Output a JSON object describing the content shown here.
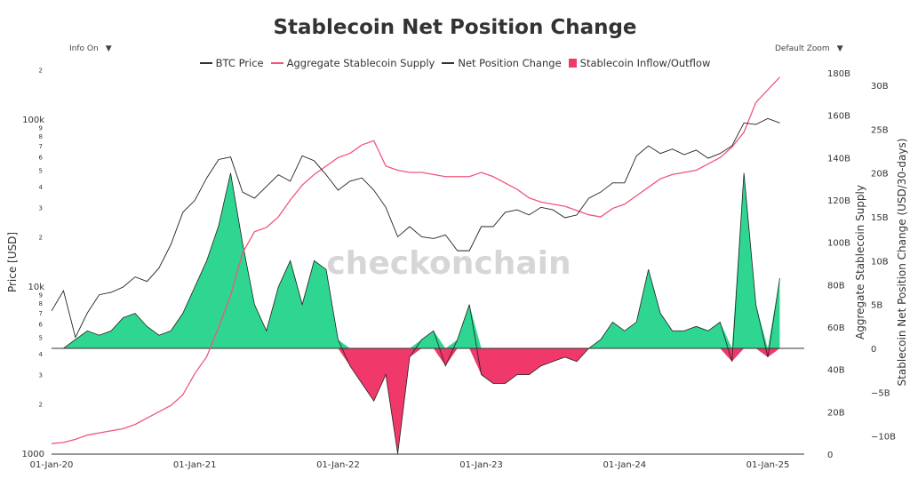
{
  "title": "Stablecoin Net Position Change",
  "controls": {
    "info": "Info On",
    "zoom": "Default Zoom",
    "caret": "▼"
  },
  "watermark": "checkonchain",
  "colors": {
    "price": "#222222",
    "supply": "#f0567a",
    "net_line": "#222222",
    "pos_fill": "#2fd691",
    "neg_fill": "#f0386b"
  },
  "chart_data": {
    "type": "line",
    "title": "Stablecoin Net Position Change",
    "legend": [
      "BTC Price",
      "Aggregate Stablecoin Supply",
      "Net Position Change",
      "Stablecoin Inflow/Outflow"
    ],
    "legend_placement": "top-center",
    "x_ticks": [
      "01-Jan-20",
      "01-Jan-21",
      "01-Jan-22",
      "01-Jan-23",
      "01-Jan-24",
      "01-Jan-25"
    ],
    "x_start": "2020-01",
    "x_step": "monthly",
    "y_left": {
      "label": "Price [USD]",
      "scale": "log",
      "range": [
        1000,
        200000
      ],
      "ticks": [
        {
          "v": 1000,
          "t": "1000"
        },
        {
          "v": 2000,
          "t": "2"
        },
        {
          "v": 3000,
          "t": "3"
        },
        {
          "v": 4000,
          "t": "4"
        },
        {
          "v": 5000,
          "t": "5"
        },
        {
          "v": 6000,
          "t": "6"
        },
        {
          "v": 7000,
          "t": "7"
        },
        {
          "v": 8000,
          "t": "8"
        },
        {
          "v": 9000,
          "t": "9"
        },
        {
          "v": 10000,
          "t": "10k"
        },
        {
          "v": 20000,
          "t": "2"
        },
        {
          "v": 30000,
          "t": "3"
        },
        {
          "v": 40000,
          "t": "4"
        },
        {
          "v": 50000,
          "t": "5"
        },
        {
          "v": 60000,
          "t": "6"
        },
        {
          "v": 70000,
          "t": "7"
        },
        {
          "v": 80000,
          "t": "8"
        },
        {
          "v": 90000,
          "t": "9"
        },
        {
          "v": 100000,
          "t": "100k"
        },
        {
          "v": 200000,
          "t": "2"
        }
      ]
    },
    "y_right1": {
      "label": "Aggregate Stablecoin Supply",
      "range": [
        0,
        180
      ],
      "ticks": [
        "0",
        "20B",
        "40B",
        "60B",
        "80B",
        "100B",
        "120B",
        "140B",
        "160B",
        "180B"
      ]
    },
    "y_right2": {
      "label": "Stablecoin Net Position Change (USD/30-days)",
      "range": [
        -12,
        30
      ],
      "ticks": [
        {
          "v": -10,
          "t": "−10B"
        },
        {
          "v": -5,
          "t": "−5B"
        },
        {
          "v": 0,
          "t": "0"
        },
        {
          "v": 5,
          "t": "5B"
        },
        {
          "v": 10,
          "t": "10B"
        },
        {
          "v": 15,
          "t": "15B"
        },
        {
          "v": 20,
          "t": "20B"
        },
        {
          "v": 25,
          "t": "25B"
        },
        {
          "v": 30,
          "t": "30B"
        }
      ]
    },
    "btc_price": [
      7200,
      9500,
      5000,
      7000,
      9000,
      9300,
      10000,
      11500,
      10800,
      13000,
      18000,
      28000,
      33000,
      45000,
      58000,
      60000,
      37000,
      34000,
      40000,
      47000,
      43000,
      61000,
      57000,
      47000,
      38000,
      43000,
      45000,
      38000,
      30000,
      20000,
      23000,
      20000,
      19500,
      20500,
      16500,
      16500,
      23000,
      23000,
      28000,
      29000,
      27000,
      30000,
      29000,
      26000,
      27000,
      34000,
      37000,
      42000,
      42000,
      61000,
      70000,
      63000,
      67000,
      62000,
      66000,
      59000,
      63000,
      70000,
      96000,
      94000,
      102000,
      96000
    ],
    "stablecoin_supply_B": [
      5,
      5.5,
      7,
      9,
      10,
      11,
      12,
      14,
      17,
      20,
      23,
      28,
      38,
      46,
      60,
      75,
      95,
      105,
      107,
      112,
      120,
      127,
      132,
      136,
      140,
      142,
      146,
      148,
      136,
      134,
      133,
      133,
      132,
      131,
      131,
      131,
      133,
      131,
      128,
      125,
      121,
      119,
      118,
      117,
      115,
      113,
      112,
      116,
      118,
      122,
      126,
      130,
      132,
      133,
      134,
      137,
      140,
      145,
      152,
      166,
      172,
      178
    ],
    "net_position_change_B": [
      0,
      0,
      1,
      2,
      1.5,
      2,
      3.5,
      4,
      2.5,
      1.5,
      2,
      4,
      7,
      10,
      14,
      20,
      12,
      5,
      2,
      7,
      10,
      5,
      10,
      9,
      1,
      -2,
      -4,
      -6,
      -3,
      -12,
      -1,
      1,
      2,
      -2,
      1,
      5,
      -3,
      -4,
      -4,
      -3,
      -3,
      -2,
      -1.5,
      -1,
      -1.5,
      0,
      1,
      3,
      2,
      3,
      9,
      4,
      2,
      2,
      2.5,
      2,
      3,
      -1.5,
      20,
      5,
      -1,
      8
    ]
  }
}
